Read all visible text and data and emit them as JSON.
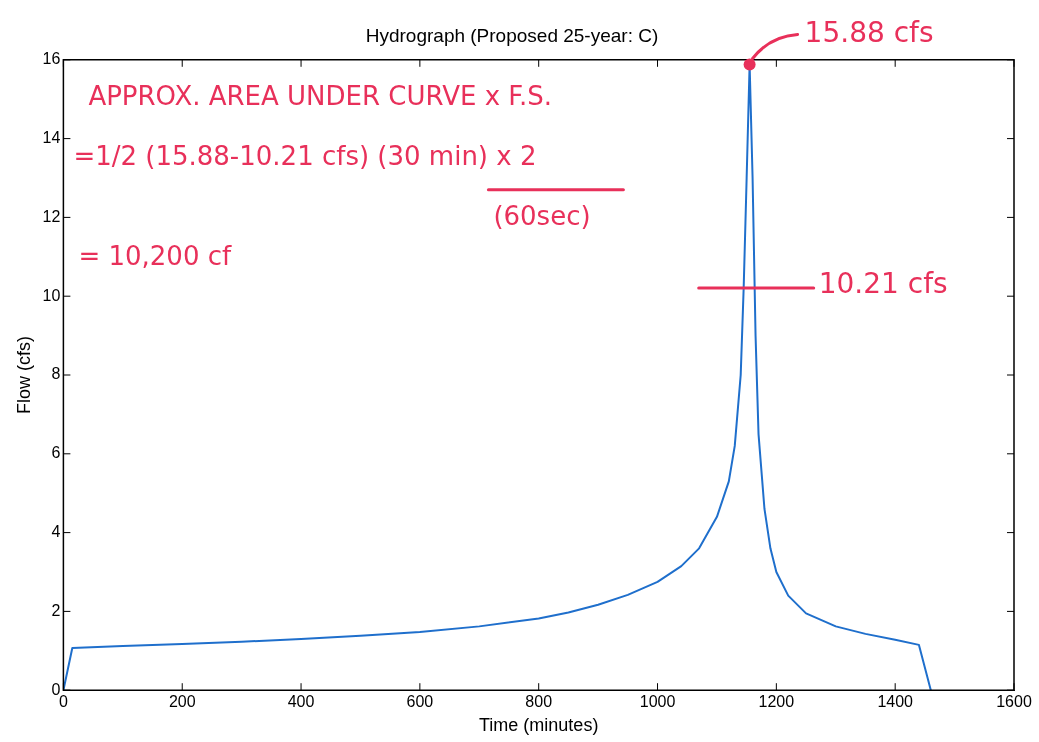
{
  "chart_data": {
    "type": "line",
    "title": "Hydrograph (Proposed 25-year: C)",
    "xlabel": "Time (minutes)",
    "ylabel": "Flow (cfs)",
    "x": [
      0,
      15,
      100,
      200,
      300,
      400,
      500,
      600,
      700,
      800,
      850,
      900,
      950,
      1000,
      1040,
      1070,
      1100,
      1120,
      1130,
      1140,
      1145,
      1150,
      1155,
      1160,
      1165,
      1170,
      1180,
      1190,
      1200,
      1220,
      1250,
      1300,
      1350,
      1400,
      1440,
      1460
    ],
    "series": [
      {
        "color": "#1f6fcc",
        "values": [
          0,
          1.07,
          1.12,
          1.17,
          1.23,
          1.3,
          1.38,
          1.48,
          1.62,
          1.82,
          1.97,
          2.17,
          2.42,
          2.75,
          3.15,
          3.6,
          4.4,
          5.3,
          6.2,
          8.0,
          10.21,
          13.0,
          15.88,
          13.0,
          9.0,
          6.5,
          4.6,
          3.6,
          3.0,
          2.4,
          1.95,
          1.62,
          1.43,
          1.28,
          1.15,
          0
        ]
      }
    ],
    "xlim": [
      0,
      1600
    ],
    "xticks": [
      0,
      200,
      400,
      600,
      800,
      1000,
      1200,
      1400,
      1600
    ],
    "ylim": [
      0,
      16
    ],
    "yticks": [
      0,
      2,
      4,
      6,
      8,
      10,
      12,
      14,
      16
    ],
    "grid": false,
    "legend": false,
    "marker": "none",
    "line_style": "solid",
    "annotations": [
      {
        "text": "15.88 cfs",
        "x": 1155,
        "y": 15.88
      },
      {
        "text": "10.21 cfs",
        "x": 1145,
        "y": 10.21
      },
      "APPROX. AREA UNDER CURVE x F.S.",
      "=1/2 (15.88-10.21 cfs) (30 min) x 2",
      "(60sec)",
      "= 10,200 cf"
    ]
  }
}
